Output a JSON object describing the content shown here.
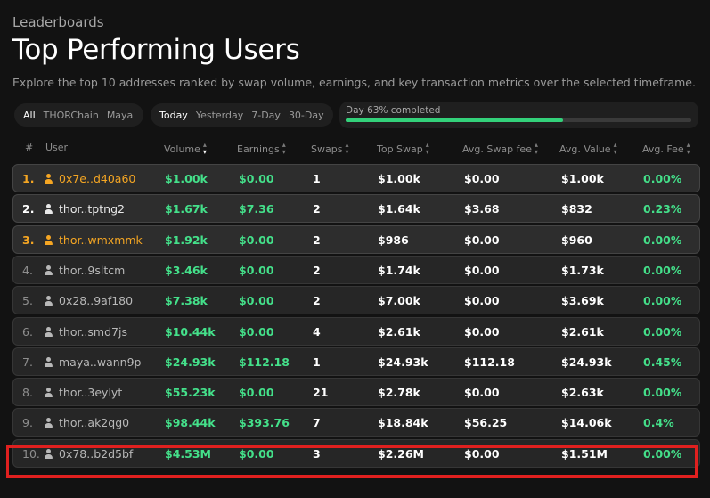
{
  "header": {
    "kicker": "Leaderboards",
    "title": "Top Performing Users",
    "subtitle": "Explore the top 10 addresses ranked by swap volume, earnings, and key transaction metrics over the selected timeframe."
  },
  "filters": {
    "chains": [
      "All",
      "THORChain",
      "Maya"
    ],
    "chain_selected": "All",
    "timeframes": [
      "Today",
      "Yesterday",
      "7-Day",
      "30-Day"
    ],
    "timeframe_selected": "Today"
  },
  "progress": {
    "label": "Day 63% completed",
    "fraction": 0.63,
    "color": "#33d17a"
  },
  "columns": {
    "rank": "#",
    "user": "User",
    "volume": "Volume",
    "earnings": "Earnings",
    "swaps": "Swaps",
    "top_swap": "Top Swap",
    "avg_swap_fee": "Avg. Swap fee",
    "avg_value": "Avg. Value",
    "avg_fee": "Avg. Fee"
  },
  "rows": [
    {
      "rank": "1.",
      "user": "0x7e..d40a60",
      "volume": "$1.00k",
      "earnings": "$0.00",
      "swaps": "1",
      "top_swap": "$1.00k",
      "avg_swap_fee": "$0.00",
      "avg_value": "$1.00k",
      "avg_fee": "0.00%"
    },
    {
      "rank": "2.",
      "user": "thor..tptng2",
      "volume": "$1.67k",
      "earnings": "$7.36",
      "swaps": "2",
      "top_swap": "$1.64k",
      "avg_swap_fee": "$3.68",
      "avg_value": "$832",
      "avg_fee": "0.23%"
    },
    {
      "rank": "3.",
      "user": "thor..wmxmmk",
      "volume": "$1.92k",
      "earnings": "$0.00",
      "swaps": "2",
      "top_swap": "$986",
      "avg_swap_fee": "$0.00",
      "avg_value": "$960",
      "avg_fee": "0.00%"
    },
    {
      "rank": "4.",
      "user": "thor..9sltcm",
      "volume": "$3.46k",
      "earnings": "$0.00",
      "swaps": "2",
      "top_swap": "$1.74k",
      "avg_swap_fee": "$0.00",
      "avg_value": "$1.73k",
      "avg_fee": "0.00%"
    },
    {
      "rank": "5.",
      "user": "0x28..9af180",
      "volume": "$7.38k",
      "earnings": "$0.00",
      "swaps": "2",
      "top_swap": "$7.00k",
      "avg_swap_fee": "$0.00",
      "avg_value": "$3.69k",
      "avg_fee": "0.00%"
    },
    {
      "rank": "6.",
      "user": "thor..smd7js",
      "volume": "$10.44k",
      "earnings": "$0.00",
      "swaps": "4",
      "top_swap": "$2.61k",
      "avg_swap_fee": "$0.00",
      "avg_value": "$2.61k",
      "avg_fee": "0.00%"
    },
    {
      "rank": "7.",
      "user": "maya..wann9p",
      "volume": "$24.93k",
      "earnings": "$112.18",
      "swaps": "1",
      "top_swap": "$24.93k",
      "avg_swap_fee": "$112.18",
      "avg_value": "$24.93k",
      "avg_fee": "0.45%"
    },
    {
      "rank": "8.",
      "user": "thor..3eylyt",
      "volume": "$55.23k",
      "earnings": "$0.00",
      "swaps": "21",
      "top_swap": "$2.78k",
      "avg_swap_fee": "$0.00",
      "avg_value": "$2.63k",
      "avg_fee": "0.00%"
    },
    {
      "rank": "9.",
      "user": "thor..ak2qg0",
      "volume": "$98.44k",
      "earnings": "$393.76",
      "swaps": "7",
      "top_swap": "$18.84k",
      "avg_swap_fee": "$56.25",
      "avg_value": "$14.06k",
      "avg_fee": "0.4%"
    },
    {
      "rank": "10.",
      "user": "0x78..b2d5bf",
      "volume": "$4.53M",
      "earnings": "$0.00",
      "swaps": "3",
      "top_swap": "$2.26M",
      "avg_swap_fee": "$0.00",
      "avg_value": "$1.51M",
      "avg_fee": "0.00%"
    }
  ],
  "colors": {
    "gold": "#f5a623",
    "green": "#44e08a",
    "highlight": "#e0201f"
  }
}
